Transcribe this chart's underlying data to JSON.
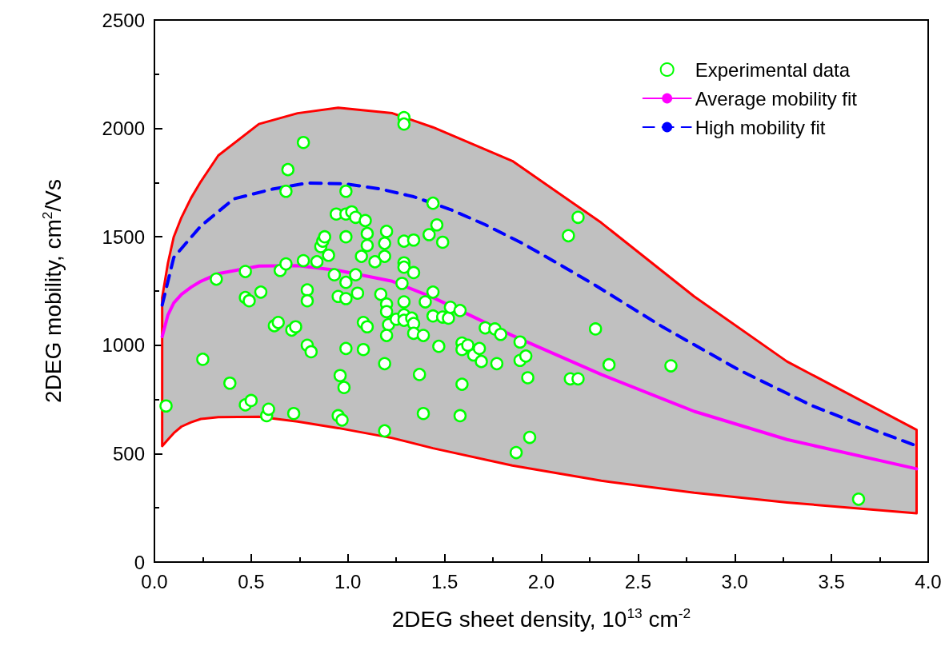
{
  "chart_data": {
    "type": "scatter",
    "xlabel": "2DEG sheet density, 10$^{13}$ cm$^{-2}$",
    "ylabel": "2DEG mobility, cm$^{2}$/Vs",
    "xlim": [
      0,
      4
    ],
    "ylim": [
      0,
      2500
    ],
    "xticks": [
      {
        "value": 0,
        "label": "0.0"
      },
      {
        "value": 0.5,
        "label": "0.5"
      },
      {
        "value": 1,
        "label": "1.0"
      },
      {
        "value": 1.5,
        "label": "1.5"
      },
      {
        "value": 2,
        "label": "2.0"
      },
      {
        "value": 2.5,
        "label": "2.5"
      },
      {
        "value": 3,
        "label": "3.0"
      },
      {
        "value": 3.5,
        "label": "3.5"
      },
      {
        "value": 4,
        "label": "4.0"
      }
    ],
    "yticks": [
      0,
      500,
      1000,
      1500,
      2000,
      2500
    ],
    "grid": false,
    "legend": "top right",
    "series": [
      {
        "name": "Experimental data",
        "marker": "circle",
        "color": "#00ff00",
        "x": [
          0.06,
          0.25,
          0.32,
          0.39,
          0.47,
          0.47,
          0.49,
          0.47,
          0.5,
          0.55,
          0.58,
          0.59,
          0.62,
          0.64,
          0.65,
          0.69,
          0.68,
          0.68,
          0.71,
          0.73,
          0.72,
          0.77,
          0.77,
          0.79,
          0.79,
          0.79,
          0.81,
          0.84,
          0.86,
          0.87,
          0.88,
          0.9,
          0.93,
          0.94,
          0.95,
          0.95,
          0.97,
          0.96,
          0.98,
          0.99,
          0.99,
          0.99,
          0.99,
          0.99,
          0.99,
          1.02,
          1.04,
          1.04,
          1.05,
          1.09,
          1.1,
          1.08,
          1.08,
          1.1,
          1.07,
          1.1,
          1.14,
          1.17,
          1.19,
          1.19,
          1.19,
          1.19,
          1.2,
          1.2,
          1.2,
          1.21,
          1.2,
          1.25,
          1.28,
          1.29,
          1.29,
          1.29,
          1.29,
          1.29,
          1.29,
          1.29,
          1.29,
          1.33,
          1.34,
          1.34,
          1.34,
          1.34,
          1.37,
          1.39,
          1.39,
          1.42,
          1.4,
          1.44,
          1.44,
          1.44,
          1.46,
          1.47,
          1.49,
          1.49,
          1.52,
          1.53,
          1.58,
          1.58,
          1.59,
          1.59,
          1.59,
          1.62,
          1.65,
          1.68,
          1.69,
          1.71,
          1.77,
          1.76,
          1.79,
          1.87,
          1.89,
          1.89,
          1.92,
          1.94,
          1.93,
          2.14,
          2.15,
          2.19,
          2.19,
          2.28,
          2.35,
          2.67,
          3.64
        ],
        "values": [
          720,
          935,
          1305,
          825,
          1340,
          1220,
          1205,
          725,
          745,
          1245,
          675,
          705,
          1090,
          1105,
          1345,
          1810,
          1710,
          1375,
          1070,
          1085,
          685,
          1935,
          1390,
          1255,
          1205,
          1000,
          970,
          1385,
          1455,
          1480,
          1500,
          1415,
          1325,
          1605,
          1225,
          675,
          655,
          860,
          805,
          1710,
          1605,
          1500,
          1215,
          985,
          1290,
          1615,
          1590,
          1325,
          1240,
          1575,
          1515,
          1105,
          980,
          1460,
          1410,
          1085,
          1385,
          1235,
          915,
          605,
          1410,
          1470,
          1525,
          1190,
          1155,
          1095,
          1045,
          1120,
          1285,
          2050,
          2020,
          1480,
          1380,
          1360,
          1200,
          1140,
          1115,
          1125,
          1485,
          1335,
          1100,
          1055,
          865,
          1045,
          685,
          1510,
          1200,
          1135,
          1245,
          1655,
          1555,
          995,
          1475,
          1130,
          1125,
          1175,
          1160,
          675,
          820,
          1010,
          980,
          1000,
          955,
          985,
          925,
          1080,
          915,
          1075,
          1050,
          505,
          1015,
          930,
          950,
          575,
          850,
          1505,
          845,
          845,
          1590,
          1075,
          910,
          905,
          290
        ]
      },
      {
        "name": "Average mobility fit",
        "type": "line",
        "marker": "none",
        "line_style": "solid",
        "color": "#ff00ff",
        "x": [
          0.04,
          0.07,
          0.1,
          0.14,
          0.19,
          0.24,
          0.33,
          0.54,
          0.74,
          0.95,
          1.23,
          1.44,
          1.85,
          2.31,
          2.79,
          3.27,
          3.94
        ],
        "values": [
          1040,
          1140,
          1195,
          1235,
          1268,
          1295,
          1330,
          1365,
          1367,
          1345,
          1295,
          1220,
          1045,
          865,
          695,
          565,
          430
        ],
        "lower": [
          535,
          565,
          595,
          625,
          645,
          660,
          668,
          670,
          648,
          618,
          572,
          525,
          445,
          375,
          320,
          275,
          225
        ],
        "upper": [
          1220,
          1380,
          1500,
          1590,
          1680,
          1755,
          1875,
          2020,
          2070,
          2095,
          2070,
          2005,
          1850,
          1565,
          1225,
          925,
          610
        ]
      },
      {
        "name": "High mobility fit",
        "type": "line",
        "marker": "none",
        "line_style": "dashed",
        "color": "#0000ff",
        "x": [
          0.04,
          0.1,
          0.24,
          0.41,
          0.61,
          0.79,
          0.98,
          1.16,
          1.34,
          1.53,
          1.71,
          1.9,
          2.08,
          2.28,
          2.63,
          3.02,
          3.4,
          3.74,
          3.94
        ],
        "values": [
          1185,
          1405,
          1550,
          1675,
          1720,
          1748,
          1745,
          1722,
          1685,
          1626,
          1556,
          1471,
          1380,
          1276,
          1083,
          887,
          721,
          602,
          536
        ]
      }
    ]
  }
}
